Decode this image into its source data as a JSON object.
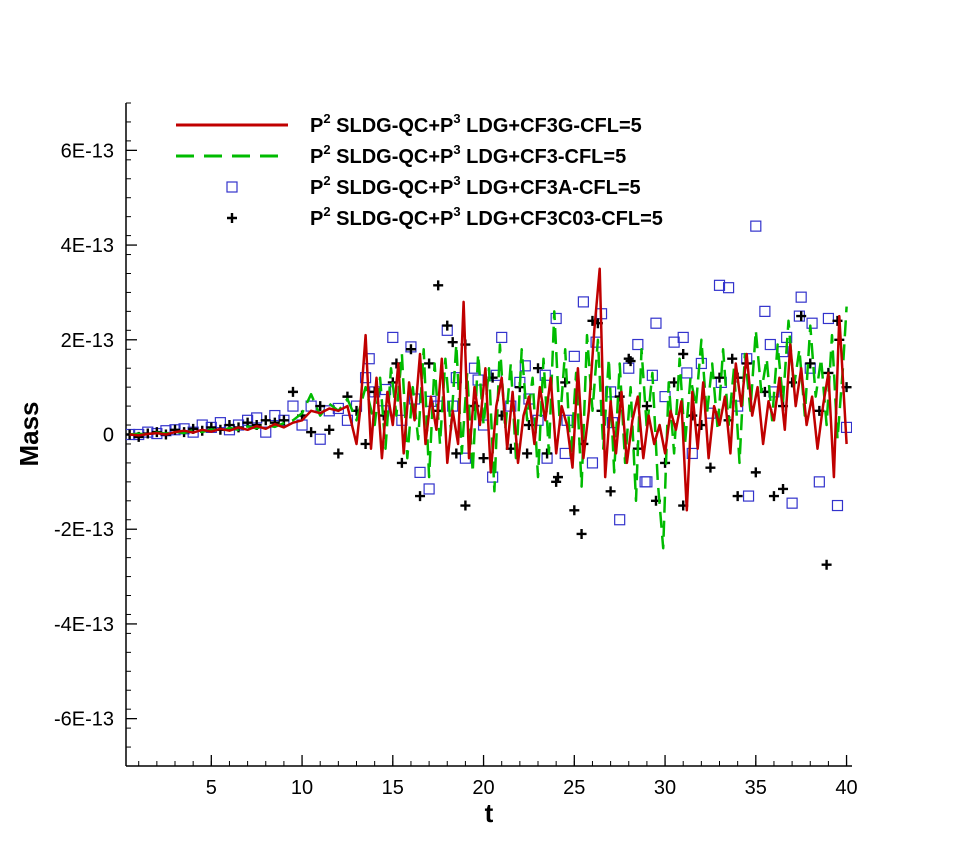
{
  "chart_data": {
    "type": "line",
    "title": "",
    "xlabel": "t",
    "ylabel": "Mass",
    "xlim": [
      0.3,
      40.3
    ],
    "ylim": [
      -7e-13,
      7e-13
    ],
    "xticks": [
      5,
      10,
      15,
      20,
      25,
      30,
      35,
      40
    ],
    "xtick_labels": [
      "5",
      "10",
      "15",
      "20",
      "25",
      "30",
      "35",
      "40"
    ],
    "yticks": [
      -6e-13,
      -4e-13,
      -2e-13,
      0,
      2e-13,
      4e-13,
      6e-13
    ],
    "ytick_labels": [
      "-6E-13",
      "-4E-13",
      "-2E-13",
      "0",
      "2E-13",
      "4E-13",
      "6E-13"
    ],
    "grid": false,
    "legend_position": "top",
    "series": [
      {
        "label_parts": [
          "P",
          "2",
          " SLDG-QC+P",
          "3",
          " LDG+CF3G-CFL=5"
        ],
        "style": "solid-line",
        "color": "#c00000",
        "x": [
          0.5,
          1,
          1.5,
          2,
          2.5,
          3,
          3.5,
          4,
          4.5,
          5,
          5.5,
          6,
          6.5,
          7,
          7.5,
          8,
          8.5,
          9,
          9.5,
          10,
          10.5,
          11,
          11.5,
          12,
          12.5,
          13,
          13.2,
          13.5,
          13.8,
          14.1,
          14.4,
          14.7,
          15,
          15.3,
          15.6,
          15.9,
          16.2,
          16.5,
          16.8,
          17.1,
          17.4,
          17.7,
          18,
          18.3,
          18.6,
          18.9,
          19.2,
          19.5,
          19.8,
          20.1,
          20.4,
          20.7,
          21,
          21.3,
          21.6,
          21.9,
          22.2,
          22.5,
          22.8,
          23.1,
          23.4,
          23.7,
          24,
          24.3,
          24.6,
          24.9,
          25.2,
          25.5,
          25.8,
          26.1,
          26.4,
          26.7,
          27,
          27.3,
          27.6,
          27.9,
          28.2,
          28.5,
          28.8,
          29.1,
          29.4,
          29.7,
          30,
          30.3,
          30.6,
          30.9,
          31.2,
          31.5,
          31.8,
          32.1,
          32.4,
          32.7,
          33,
          33.3,
          33.6,
          33.9,
          34.2,
          34.5,
          34.8,
          35.1,
          35.4,
          35.7,
          36,
          36.3,
          36.6,
          36.9,
          37.2,
          37.5,
          37.8,
          38.1,
          38.4,
          38.7,
          39,
          39.3,
          39.6,
          40
        ],
        "y": [
          0,
          -2e-15,
          1e-15,
          3e-15,
          0,
          5e-15,
          8e-15,
          4e-15,
          1e-14,
          6e-15,
          1.2e-14,
          8e-15,
          1.5e-14,
          1e-14,
          1.8e-14,
          1.2e-14,
          2.2e-14,
          1.5e-14,
          2.5e-14,
          3e-14,
          5e-14,
          4.5e-14,
          5.5e-14,
          5e-14,
          6e-14,
          -2e-14,
          5e-14,
          2.1e-13,
          -3e-14,
          1.2e-13,
          -5e-14,
          9e-14,
          2e-14,
          1.5e-13,
          -4e-14,
          1.1e-13,
          3e-14,
          1.7e-13,
          -2e-14,
          8e-14,
          1e-14,
          1.6e-13,
          -6e-14,
          5e-14,
          -2e-14,
          2.8e-13,
          -5e-14,
          1e-13,
          2e-14,
          1.4e-13,
          -8e-14,
          6e-14,
          1.2e-13,
          -3e-14,
          9e-14,
          -6e-14,
          4e-14,
          8e-14,
          -2e-14,
          1e-13,
          3e-14,
          1.2e-13,
          -4e-14,
          6e-14,
          2e-14,
          -7e-14,
          1.4e-13,
          -5e-14,
          5e-14,
          2.2e-13,
          3.5e-13,
          -9e-14,
          7e-14,
          -4e-14,
          9e-14,
          -6e-14,
          3e-14,
          8e-14,
          -5e-14,
          4e-14,
          -2e-14,
          2e-14,
          -4e-14,
          5e-14,
          1e-14,
          7e-14,
          -1.6e-13,
          9e-14,
          -3e-14,
          1.1e-13,
          -5e-14,
          6e-14,
          2e-14,
          8e-14,
          -4e-14,
          1.5e-13,
          6e-14,
          1.7e-13,
          4e-14,
          1e-13,
          -2e-14,
          7e-14,
          3e-14,
          1.2e-13,
          1e-14,
          1.9e-13,
          6e-14,
          1.4e-13,
          2e-14,
          8e-14,
          -3e-14,
          6e-14,
          1.3e-13,
          -9e-14,
          2.5e-13,
          -2e-14
        ]
      },
      {
        "label_parts": [
          "P",
          "2",
          " SLDG-QC+P",
          "3",
          " LDG+CF3-CFL=5"
        ],
        "style": "dashed-line",
        "color": "#00bb00",
        "x": [
          0.5,
          1,
          1.5,
          2,
          2.5,
          3,
          3.5,
          4,
          4.5,
          5,
          5.5,
          6,
          6.5,
          7,
          7.5,
          8,
          8.5,
          9,
          9.5,
          10,
          10.5,
          11,
          11.5,
          12,
          12.5,
          13,
          13.5,
          14,
          14.3,
          14.6,
          14.9,
          15.2,
          15.5,
          15.8,
          16.1,
          16.4,
          16.7,
          17,
          17.3,
          17.6,
          17.9,
          18.2,
          18.5,
          18.8,
          19.1,
          19.4,
          19.7,
          20,
          20.3,
          20.6,
          20.9,
          21.2,
          21.5,
          21.8,
          22.1,
          22.4,
          22.7,
          23,
          23.3,
          23.6,
          23.9,
          24.2,
          24.5,
          24.8,
          25.1,
          25.4,
          25.7,
          26,
          26.3,
          26.6,
          26.9,
          27.2,
          27.5,
          27.8,
          28.1,
          28.4,
          28.7,
          29,
          29.3,
          29.6,
          29.9,
          30.2,
          30.5,
          30.8,
          31.1,
          31.4,
          31.7,
          32,
          32.3,
          32.6,
          32.9,
          33.2,
          33.5,
          33.8,
          34.1,
          34.4,
          34.7,
          35,
          35.3,
          35.6,
          35.9,
          36.2,
          36.5,
          36.8,
          37.1,
          37.4,
          37.7,
          38,
          38.3,
          38.6,
          38.9,
          39.2,
          39.5,
          39.8,
          40
        ],
        "y": [
          0,
          2e-15,
          -1e-15,
          4e-15,
          2e-15,
          6e-15,
          3e-15,
          9e-15,
          5e-15,
          1.1e-14,
          7e-15,
          1.4e-14,
          1e-14,
          1.7e-14,
          1.3e-14,
          2e-14,
          1.6e-14,
          2.4e-14,
          3e-14,
          4.5e-14,
          8.5e-14,
          4e-14,
          6.5e-14,
          5e-14,
          7.5e-14,
          3e-14,
          1e-13,
          2e-14,
          1.2e-13,
          -3e-14,
          1.4e-13,
          4e-14,
          1.7e-13,
          -5e-14,
          1e-13,
          -1e-14,
          1.8e-13,
          -9e-14,
          1.5e-13,
          -2e-14,
          1.6e-13,
          1e-14,
          1.9e-13,
          -4e-14,
          1.3e-13,
          -8e-14,
          1.7e-13,
          2e-14,
          1.4e-13,
          -1.2e-13,
          1.9e-13,
          1e-14,
          1.5e-13,
          -6e-14,
          1.8e-13,
          3e-14,
          1.2e-13,
          -9e-14,
          1.6e-13,
          -4e-14,
          2.6e-13,
          2e-14,
          1.8e-13,
          -5e-14,
          1.3e-13,
          -1.1e-13,
          2.1e-13,
          5e-14,
          2e-13,
          -3e-14,
          1.6e-13,
          -8e-14,
          1.5e-13,
          -6e-14,
          1e-13,
          -1.4e-13,
          1.8e-13,
          1e-14,
          1.3e-13,
          -1e-13,
          -2.4e-13,
          1.1e-13,
          -4e-14,
          1.6e-13,
          -2e-14,
          1.2e-13,
          6e-14,
          2e-13,
          4e-14,
          1.5e-13,
          1e-14,
          1.8e-13,
          2e-14,
          1.4e-13,
          -6e-14,
          1.7e-13,
          5e-14,
          2.2e-13,
          9e-14,
          1.6e-13,
          3e-14,
          1.9e-13,
          7e-14,
          2.4e-13,
          1e-13,
          1.8e-13,
          4e-14,
          2.3e-13,
          8e-14,
          1.6e-13,
          2e-14,
          2.1e-13,
          -1e-14,
          1.4e-13,
          2.7e-13
        ]
      },
      {
        "label_parts": [
          "P",
          "2",
          " SLDG-QC+P",
          "3",
          " LDG+CF3A-CFL=5"
        ],
        "style": "square-marker",
        "color": "#3333cc",
        "x": [
          0.5,
          1,
          1.5,
          2,
          2.5,
          3,
          3.5,
          4,
          4.5,
          5,
          5.5,
          6,
          6.5,
          7,
          7.5,
          8,
          8.5,
          9,
          9.5,
          10,
          10.5,
          11,
          11.5,
          12,
          12.5,
          13,
          13.5,
          14,
          14.5,
          15,
          15.5,
          16,
          16.5,
          17,
          17.5,
          18,
          18.5,
          19,
          19.5,
          20,
          20.5,
          21,
          21.5,
          22,
          22.5,
          23,
          23.5,
          24,
          24.5,
          25,
          25.5,
          26,
          26.5,
          27,
          27.5,
          28,
          28.5,
          29,
          29.5,
          30,
          30.5,
          31,
          31.5,
          32,
          32.5,
          33,
          33.5,
          34,
          34.5,
          35,
          35.5,
          36,
          36.5,
          37,
          37.5,
          38,
          38.5,
          39,
          39.5,
          40,
          13.7,
          16.2,
          18.3,
          20.7,
          22.3,
          24.6,
          26.2,
          28.9,
          31.2,
          33.1,
          35.8,
          37.4,
          36.7,
          38.1,
          34.6,
          29.3,
          27.1,
          23.4,
          19.7,
          17.1,
          14.6
        ],
        "y": [
          0,
          0,
          5e-15,
          2e-15,
          8e-15,
          1e-14,
          1.2e-14,
          5e-15,
          2e-14,
          1.5e-14,
          2.5e-14,
          1e-14,
          2e-14,
          3e-14,
          3.5e-14,
          5e-15,
          4e-14,
          3e-14,
          6e-14,
          2e-14,
          6e-14,
          -1e-14,
          5e-14,
          5.5e-14,
          3e-14,
          6e-14,
          1.2e-13,
          9e-14,
          5e-14,
          2.05e-13,
          3e-14,
          1.85e-13,
          -8e-14,
          -1.15e-13,
          6e-14,
          2.2e-13,
          1.2e-13,
          -5e-14,
          1.4e-13,
          2e-14,
          -9e-14,
          2.05e-13,
          6e-14,
          1.1e-13,
          7.5e-14,
          3e-14,
          -5e-14,
          2.45e-13,
          -4e-14,
          1.65e-13,
          2.8e-13,
          -6e-14,
          2.55e-13,
          9e-14,
          -1.8e-13,
          1.4e-13,
          1.9e-13,
          -1e-13,
          2.35e-13,
          8e-14,
          1.95e-13,
          2.05e-13,
          -4e-14,
          1.5e-13,
          4.5e-14,
          3.15e-13,
          3.1e-13,
          6e-14,
          1.6e-13,
          4.4e-13,
          2.6e-13,
          9e-14,
          1.75e-13,
          -1.45e-13,
          2.9e-13,
          1.4e-13,
          -1e-13,
          2.45e-13,
          -1.5e-13,
          1.5e-14,
          1.6e-13,
          7.5e-14,
          6e-14,
          1.25e-13,
          1.45e-13,
          3e-14,
          1.95e-13,
          -1e-13,
          1.3e-13,
          1.1e-13,
          1.9e-13,
          2.5e-13,
          2.05e-13,
          2.35e-13,
          -1.3e-13,
          1.25e-13,
          2.5e-14,
          1.25e-13,
          1.15e-13,
          7e-14,
          9.5e-14
        ]
      },
      {
        "label_parts": [
          "P",
          "2",
          " SLDG-QC+P",
          "3",
          " LDG+CF3C03-CFL=5"
        ],
        "style": "plus-marker",
        "color": "#000000",
        "x": [
          0.5,
          1,
          1.5,
          2,
          2.5,
          3,
          3.5,
          4,
          4.5,
          5,
          5.5,
          6,
          6.5,
          7,
          7.5,
          8,
          8.5,
          9,
          9.5,
          10,
          10.5,
          11,
          11.5,
          12,
          12.5,
          13,
          13.5,
          14,
          14.5,
          15,
          15.5,
          16,
          16.5,
          17,
          17.5,
          18,
          18.5,
          19,
          19.5,
          20,
          20.5,
          21,
          21.5,
          22,
          22.5,
          23,
          23.5,
          24,
          24.5,
          25,
          25.5,
          26,
          26.5,
          27,
          27.5,
          28,
          28.5,
          29,
          29.5,
          30,
          30.5,
          31,
          31.5,
          32,
          32.5,
          33,
          33.5,
          34,
          34.5,
          35,
          35.5,
          36,
          36.5,
          37,
          37.5,
          38,
          38.5,
          39,
          39.5,
          40,
          17.5,
          18.3,
          25.4,
          24.1,
          26.3,
          28.1,
          31.0,
          34.0,
          36.5,
          38.9,
          39.6,
          15.2,
          19.0,
          22.4,
          33.7
        ],
        "y": [
          0,
          -5e-15,
          2e-15,
          5e-15,
          0,
          1e-14,
          5e-15,
          1.2e-14,
          8e-15,
          1.5e-14,
          1e-14,
          2e-14,
          1.5e-14,
          2.5e-14,
          2e-14,
          3e-14,
          2.5e-14,
          3e-14,
          9e-14,
          4e-14,
          5e-15,
          6e-14,
          1e-14,
          -4e-14,
          8e-14,
          5e-14,
          -2e-14,
          9e-14,
          4e-14,
          1.1e-13,
          -6e-14,
          1.8e-13,
          -1.3e-13,
          1.5e-13,
          5e-14,
          2.3e-13,
          -4e-14,
          -1.5e-13,
          6e-14,
          -5e-14,
          1.2e-13,
          4e-14,
          -3e-14,
          1e-13,
          2e-14,
          1.4e-13,
          -4e-14,
          -1e-13,
          1.1e-13,
          -1.6e-13,
          -2e-14,
          2.4e-13,
          5e-14,
          -1.2e-13,
          8e-14,
          1.6e-13,
          -3e-14,
          6e-14,
          -1.4e-13,
          -6e-14,
          1.1e-13,
          1.7e-13,
          4e-14,
          2e-14,
          -7e-14,
          1.2e-13,
          3e-14,
          -1.3e-13,
          1.5e-13,
          -8e-14,
          9e-14,
          -1.3e-13,
          6e-14,
          1.1e-13,
          2.5e-13,
          1.5e-13,
          5e-14,
          1.3e-13,
          2.4e-13,
          1e-13,
          3.15e-13,
          1.95e-13,
          -2.1e-13,
          -9e-14,
          2.35e-13,
          1.55e-13,
          -1.5e-13,
          1.2e-13,
          -1.15e-13,
          -2.75e-13,
          2e-13,
          1.5e-13,
          1.9e-13,
          -4e-14,
          1.6e-13
        ]
      }
    ]
  }
}
